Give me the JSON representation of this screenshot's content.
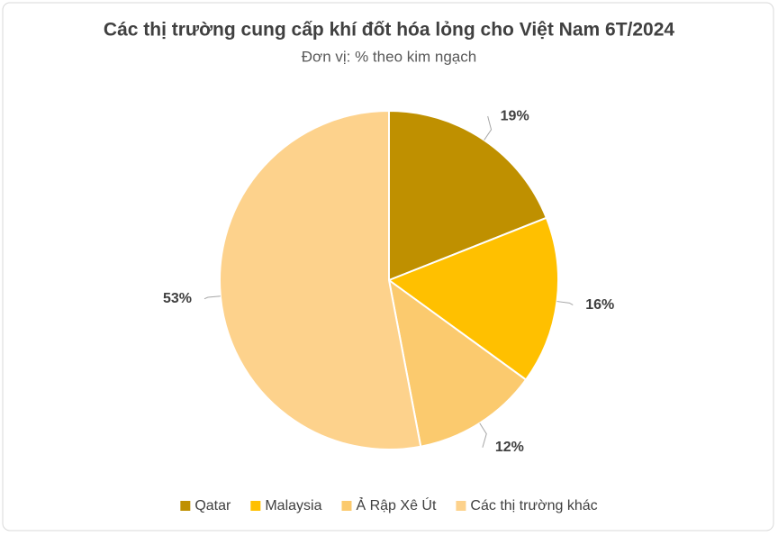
{
  "chart_data": {
    "type": "pie",
    "title": "Các thị trường cung cấp khí đốt hóa lỏng cho Việt Nam 6T/2024",
    "subtitle": "Đơn vị: % theo kim ngạch",
    "categories": [
      "Qatar",
      "Malaysia",
      "Ả Rập Xê Út",
      "Các thị trường khác"
    ],
    "values": [
      19,
      16,
      12,
      53
    ],
    "value_labels": [
      "19%",
      "16%",
      "12%",
      "53%"
    ],
    "colors": [
      "#bf9000",
      "#ffc000",
      "#fbca6e",
      "#fdd28c"
    ],
    "legend": "bottom"
  }
}
